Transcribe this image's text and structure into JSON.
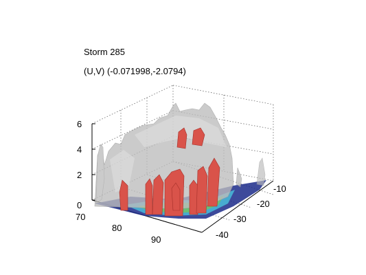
{
  "figure": {
    "title_line1": "Storm 285",
    "title_line2": "(U,V) (-0.071998,-2.0794)"
  },
  "axes": {
    "z_ticks": [
      "0",
      "2",
      "4",
      "6"
    ],
    "x_ticks": [
      "70",
      "80",
      "90"
    ],
    "y_ticks": [
      "-10",
      "-20",
      "-30",
      "-40"
    ]
  },
  "colors": {
    "shell": "#bdbdbd",
    "shell_edge": "#9a9a9a",
    "core": "#d9534a",
    "core_edge": "#a4302a",
    "base_green": "#6cc070",
    "base_blue": "#1b2a8a",
    "base_cyan": "#48b6d6",
    "grid": "#555555"
  }
}
